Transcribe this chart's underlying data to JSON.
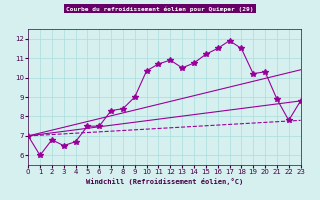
{
  "title": "Courbe du refroidissement éolien pour Quimper (29)",
  "xlabel": "Windchill (Refroidissement éolien,°C)",
  "ylabel": "",
  "background_color": "#d6f0f0",
  "line_color": "#990099",
  "grid_color": "#aadddd",
  "xlim": [
    0,
    23
  ],
  "ylim": [
    5.5,
    12.5
  ],
  "xticks": [
    0,
    1,
    2,
    3,
    4,
    5,
    6,
    7,
    8,
    9,
    10,
    11,
    12,
    13,
    14,
    15,
    16,
    17,
    18,
    19,
    20,
    21,
    22,
    23
  ],
  "yticks": [
    6,
    7,
    8,
    9,
    10,
    11,
    12
  ],
  "line1_x": [
    0,
    1,
    2,
    3,
    4,
    5,
    6,
    7,
    8,
    9,
    10,
    11,
    12,
    13,
    14,
    15,
    16,
    17,
    18,
    19,
    20,
    21,
    22,
    23
  ],
  "line1_y": [
    7.0,
    6.0,
    6.8,
    6.5,
    6.7,
    7.5,
    7.5,
    8.3,
    8.4,
    9.0,
    10.35,
    10.7,
    10.9,
    10.5,
    10.75,
    11.2,
    11.5,
    11.9,
    11.5,
    10.2,
    10.3,
    8.9,
    7.8,
    8.8
  ],
  "line2_x": [
    0,
    23
  ],
  "line2_y": [
    7.0,
    10.4
  ],
  "line3_x": [
    0,
    23
  ],
  "line3_y": [
    7.0,
    8.8
  ],
  "line4_x": [
    0,
    23
  ],
  "line4_y": [
    7.0,
    7.8
  ]
}
